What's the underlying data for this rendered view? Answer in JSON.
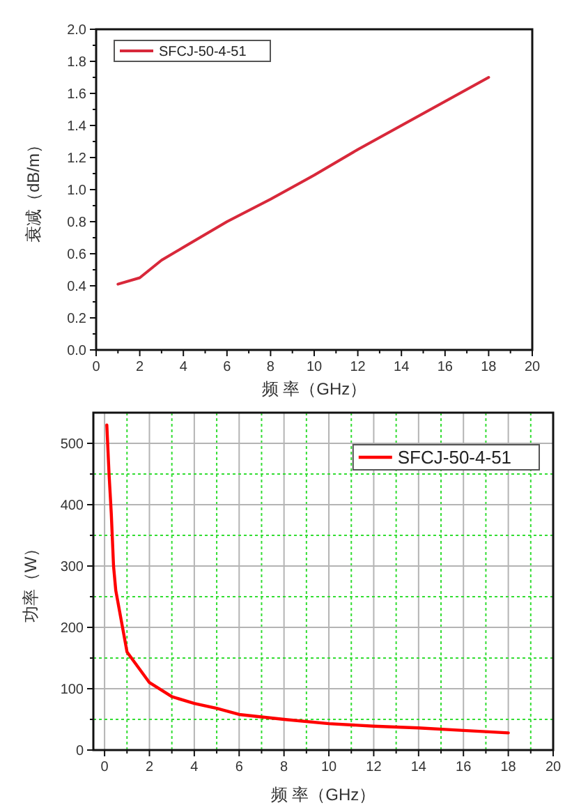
{
  "chart_data": [
    {
      "type": "line",
      "xlabel": "频 率（GHz）",
      "ylabel": "衰减（dB/m）",
      "xlim": [
        0,
        20
      ],
      "ylim": [
        0,
        2
      ],
      "xticks": [
        0,
        {
          "value": 1,
          "label": null
        },
        2,
        {
          "value": 3,
          "label": null
        },
        4,
        {
          "value": 5,
          "label": null
        },
        6,
        {
          "value": 7,
          "label": null
        },
        8,
        {
          "value": 9,
          "label": null
        },
        10,
        {
          "value": 11,
          "label": null
        },
        12,
        {
          "value": 13,
          "label": null
        },
        14,
        {
          "value": 15,
          "label": null
        },
        16,
        {
          "value": 17,
          "label": null
        },
        18,
        {
          "value": 19,
          "label": null
        },
        20
      ],
      "yticks": [
        {
          "value": 0,
          "label": "0.0"
        },
        {
          "value": 0.1,
          "label": null
        },
        0.2,
        {
          "value": 0.3,
          "label": null
        },
        0.4,
        {
          "value": 0.5,
          "label": null
        },
        0.6,
        {
          "value": 0.7,
          "label": null
        },
        0.8,
        {
          "value": 0.9,
          "label": null
        },
        {
          "value": 1,
          "label": "1.0"
        },
        {
          "value": 1.1,
          "label": null
        },
        1.2,
        {
          "value": 1.3,
          "label": null
        },
        1.4,
        {
          "value": 1.5,
          "label": null
        },
        1.6,
        {
          "value": 1.7,
          "label": null
        },
        1.8,
        {
          "value": 1.9,
          "label": null
        },
        {
          "value": 2,
          "label": "2.0"
        }
      ],
      "grid": false,
      "legend": "top left",
      "series": [
        {
          "name": "SFCJ-50-4-51",
          "color": "#d8283a",
          "x": [
            1,
            2,
            3,
            4,
            6,
            8,
            10,
            12,
            14,
            16,
            18
          ],
          "values": [
            0.41,
            0.45,
            0.56,
            0.64,
            0.8,
            0.94,
            1.09,
            1.25,
            1.4,
            1.55,
            1.7
          ]
        }
      ]
    },
    {
      "type": "line",
      "xlabel": "频 率（GHz）",
      "ylabel": "功率（W）",
      "xlim": [
        -0.5,
        20
      ],
      "ylim": [
        0,
        550
      ],
      "xticks": [
        0,
        {
          "value": 1,
          "label": null
        },
        2,
        {
          "value": 3,
          "label": null
        },
        4,
        {
          "value": 5,
          "label": null
        },
        6,
        {
          "value": 7,
          "label": null
        },
        8,
        {
          "value": 9,
          "label": null
        },
        10,
        {
          "value": 11,
          "label": null
        },
        12,
        {
          "value": 13,
          "label": null
        },
        14,
        {
          "value": 15,
          "label": null
        },
        16,
        {
          "value": 17,
          "label": null
        },
        18,
        {
          "value": 19,
          "label": null
        },
        20
      ],
      "yticks": [
        0,
        {
          "value": 50,
          "label": null
        },
        100,
        {
          "value": 150,
          "label": null
        },
        200,
        {
          "value": 250,
          "label": null
        },
        300,
        {
          "value": 350,
          "label": null
        },
        400,
        {
          "value": 450,
          "label": null
        },
        500
      ],
      "grid": true,
      "legend": "top right",
      "series": [
        {
          "name": "SFCJ-50-4-51",
          "color": "#ff0000",
          "x": [
            0.1,
            0.2,
            0.3,
            0.4,
            0.5,
            1,
            2,
            3,
            4,
            5,
            6,
            8,
            10,
            12,
            14,
            16,
            18
          ],
          "values": [
            530,
            450,
            385,
            300,
            260,
            160,
            110,
            87,
            76,
            68,
            58,
            50,
            43,
            39,
            36,
            32,
            28
          ]
        }
      ]
    }
  ]
}
